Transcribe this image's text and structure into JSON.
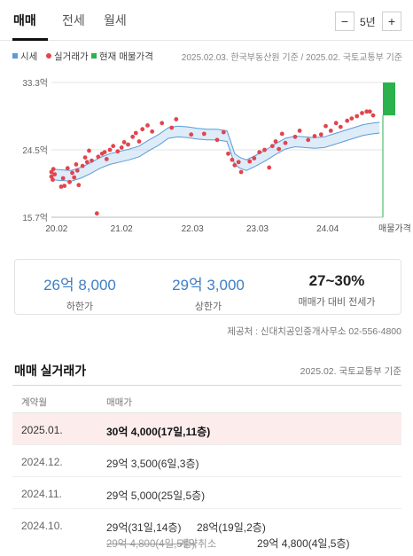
{
  "tabs": [
    {
      "label": "매매",
      "active": true
    },
    {
      "label": "전세",
      "active": false
    },
    {
      "label": "월세",
      "active": false
    }
  ],
  "period": {
    "minus": "−",
    "value": "5년",
    "plus": "+"
  },
  "legend": {
    "items": [
      {
        "label": "시세",
        "color": "#5a9bd8",
        "shape": "square"
      },
      {
        "label": "실거래가",
        "color": "#e3444e",
        "shape": "dot"
      },
      {
        "label": "현재 매물가격",
        "color": "#2bb24c",
        "shape": "square"
      }
    ],
    "source": "2025.02.03. 한국부동산원 기준 / 2025.02. 국토교통부 기준"
  },
  "colors": {
    "band": "#9fc8ec",
    "line": "#5a9bd8",
    "dot": "#e3444e",
    "listing": "#2bb24c",
    "accent": "#3f7ec4"
  },
  "chart_data": {
    "type": "scatter",
    "y_unit": "억",
    "y_ticks": [
      "33.3억",
      "24.5억",
      "15.7억"
    ],
    "y_tick_values": [
      33.3,
      24.5,
      15.7
    ],
    "ylim": [
      15.7,
      33.3
    ],
    "x_ticks": [
      "20.02",
      "21.02",
      "22.03",
      "23.03",
      "24.04",
      "매물가격"
    ],
    "x_tick_values": [
      2020.08,
      2021.08,
      2022.17,
      2023.17,
      2024.25
    ],
    "xlim": [
      2020.0,
      2025.1
    ],
    "band_series": {
      "name": "시세",
      "x": [
        2020.0,
        2020.15,
        2020.3,
        2020.45,
        2020.6,
        2020.75,
        2020.9,
        2021.05,
        2021.2,
        2021.35,
        2021.5,
        2021.65,
        2021.8,
        2021.95,
        2022.1,
        2022.25,
        2022.4,
        2022.55,
        2022.7,
        2022.75,
        2022.82,
        2022.9,
        2023.0,
        2023.15,
        2023.3,
        2023.45,
        2023.6,
        2023.75,
        2023.9,
        2024.05,
        2024.2,
        2024.35,
        2024.5,
        2024.65,
        2024.8,
        2024.95,
        2025.05
      ],
      "upper": [
        22.0,
        21.9,
        21.8,
        22.2,
        22.8,
        23.5,
        24.0,
        24.3,
        24.6,
        25.0,
        25.8,
        26.5,
        27.4,
        27.6,
        27.5,
        27.3,
        27.2,
        27.2,
        27.0,
        25.8,
        24.0,
        23.5,
        23.2,
        23.8,
        24.5,
        25.3,
        26.0,
        26.3,
        26.2,
        26.1,
        26.2,
        26.6,
        27.0,
        27.4,
        27.8,
        28.0,
        28.1
      ],
      "lower": [
        20.6,
        20.5,
        20.4,
        20.8,
        21.4,
        22.1,
        22.6,
        22.9,
        23.2,
        23.6,
        24.4,
        25.1,
        26.0,
        26.2,
        26.1,
        25.9,
        25.8,
        25.8,
        25.6,
        24.4,
        22.6,
        22.1,
        21.8,
        22.4,
        23.1,
        23.9,
        24.6,
        24.9,
        24.8,
        24.7,
        24.8,
        25.2,
        25.6,
        26.0,
        26.4,
        26.6,
        26.7
      ]
    },
    "scatter_series": {
      "name": "실거래가",
      "points": [
        [
          2020.0,
          21.0
        ],
        [
          2020.0,
          21.6
        ],
        [
          2020.02,
          20.6
        ],
        [
          2020.03,
          22.0
        ],
        [
          2020.05,
          21.3
        ],
        [
          2020.15,
          19.7
        ],
        [
          2020.18,
          20.8
        ],
        [
          2020.2,
          19.8
        ],
        [
          2020.25,
          22.1
        ],
        [
          2020.28,
          20.3
        ],
        [
          2020.32,
          21.5
        ],
        [
          2020.35,
          20.9
        ],
        [
          2020.38,
          22.6
        ],
        [
          2020.4,
          21.8
        ],
        [
          2020.42,
          19.9
        ],
        [
          2020.48,
          22.4
        ],
        [
          2020.52,
          23.5
        ],
        [
          2020.55,
          22.9
        ],
        [
          2020.58,
          24.4
        ],
        [
          2020.62,
          23.1
        ],
        [
          2020.7,
          16.2
        ],
        [
          2020.72,
          23.6
        ],
        [
          2020.78,
          24.0
        ],
        [
          2020.82,
          24.2
        ],
        [
          2020.85,
          23.3
        ],
        [
          2020.9,
          24.5
        ],
        [
          2020.95,
          25.0
        ],
        [
          2021.02,
          24.3
        ],
        [
          2021.08,
          24.8
        ],
        [
          2021.12,
          25.5
        ],
        [
          2021.18,
          25.2
        ],
        [
          2021.25,
          26.2
        ],
        [
          2021.3,
          26.7
        ],
        [
          2021.35,
          25.6
        ],
        [
          2021.4,
          27.2
        ],
        [
          2021.48,
          27.7
        ],
        [
          2021.55,
          26.9
        ],
        [
          2021.7,
          28.0
        ],
        [
          2021.85,
          27.4
        ],
        [
          2021.92,
          28.5
        ],
        [
          2022.15,
          26.5
        ],
        [
          2022.35,
          26.6
        ],
        [
          2022.55,
          25.8
        ],
        [
          2022.65,
          26.8
        ],
        [
          2022.72,
          24.0
        ],
        [
          2022.78,
          23.2
        ],
        [
          2022.82,
          22.5
        ],
        [
          2022.88,
          22.9
        ],
        [
          2022.92,
          21.6
        ],
        [
          2023.05,
          23.0
        ],
        [
          2023.12,
          23.4
        ],
        [
          2023.2,
          24.2
        ],
        [
          2023.28,
          24.5
        ],
        [
          2023.35,
          22.2
        ],
        [
          2023.4,
          25.0
        ],
        [
          2023.45,
          25.6
        ],
        [
          2023.5,
          24.6
        ],
        [
          2023.55,
          26.6
        ],
        [
          2023.6,
          25.4
        ],
        [
          2023.75,
          26.2
        ],
        [
          2023.82,
          27.0
        ],
        [
          2023.95,
          25.8
        ],
        [
          2024.05,
          26.3
        ],
        [
          2024.15,
          26.5
        ],
        [
          2024.22,
          27.6
        ],
        [
          2024.3,
          27.0
        ],
        [
          2024.38,
          28.0
        ],
        [
          2024.45,
          27.5
        ],
        [
          2024.55,
          28.3
        ],
        [
          2024.62,
          28.6
        ],
        [
          2024.7,
          28.9
        ],
        [
          2024.78,
          29.3
        ],
        [
          2024.85,
          29.5
        ],
        [
          2024.9,
          29.5
        ],
        [
          2024.95,
          29.0
        ]
      ]
    },
    "listing_range": {
      "name": "현재 매물가격",
      "low": 29.0,
      "high": 33.3,
      "x_label": "매물가격"
    },
    "grid": true
  },
  "stats": [
    {
      "value": "26억 8,000",
      "label": "하한가"
    },
    {
      "value": "29억 3,000",
      "label": "상한가"
    },
    {
      "value": "27~30%",
      "label": "매매가 대비 전세가"
    }
  ],
  "provider": "제공처 : 신대치공인중개사무소 02-556-4800",
  "section": {
    "title": "매매 실거래가",
    "source": "2025.02. 국토교통부 기준"
  },
  "table": {
    "headers": [
      "계약월",
      "매매가"
    ],
    "rows": [
      {
        "month": "2025.01.",
        "price": "30억 4,000(17일,11층)"
      },
      {
        "month": "2024.12.",
        "price": "29억 3,500(6일,3층)"
      },
      {
        "month": "2024.11.",
        "price": "29억 5,000(25일,5층)"
      },
      {
        "month": "2024.10.",
        "price": "29억(31일,14층)",
        "price2": "28억(19일,2층)",
        "struck": "29억 4,800(4일,5층)",
        "cancel": "계약취소",
        "price3": "29억 4,800(4일,5층)"
      }
    ]
  }
}
